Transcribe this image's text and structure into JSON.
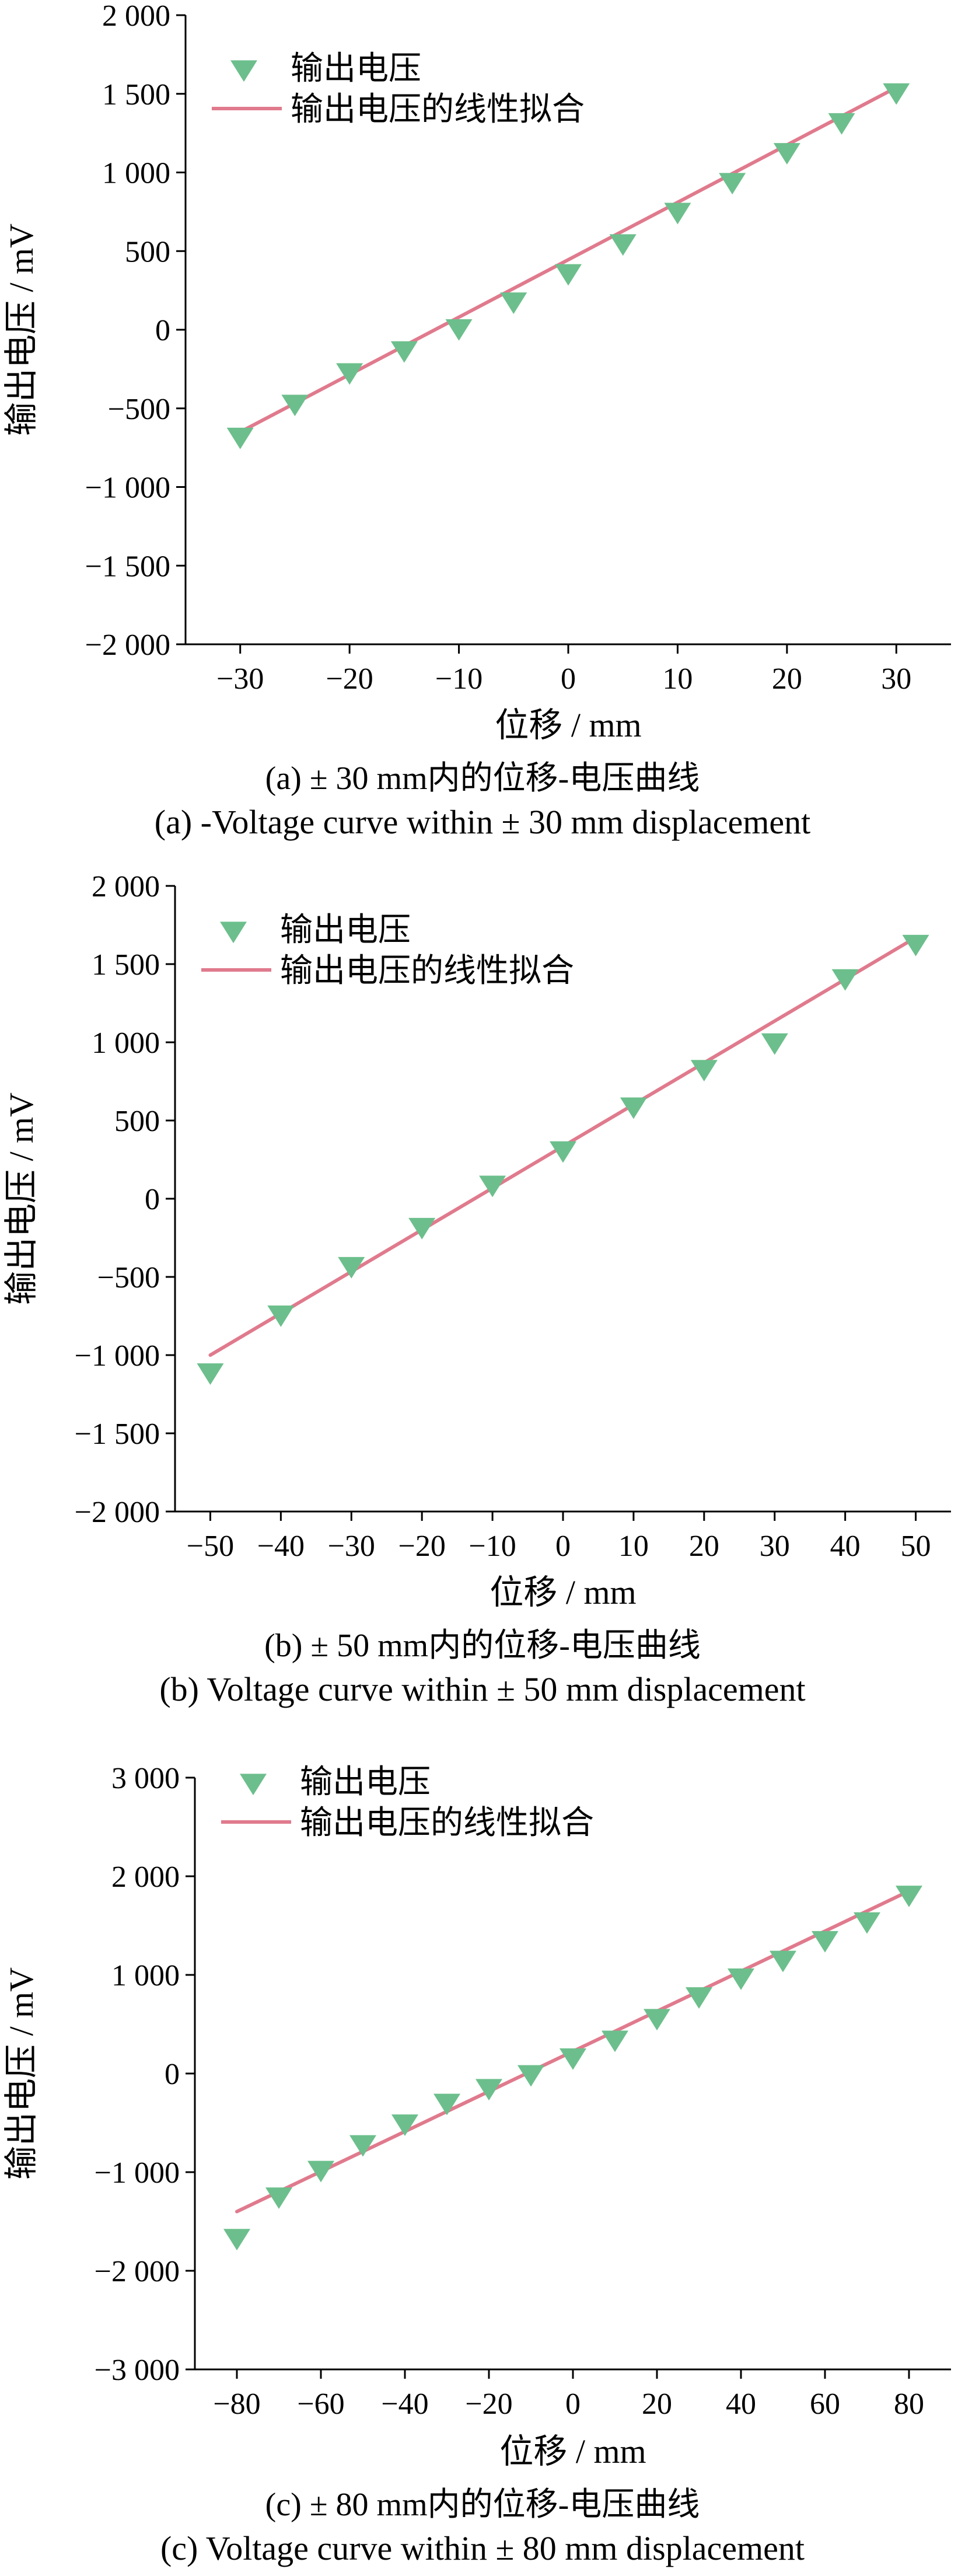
{
  "chart_data": [
    {
      "type": "scatter",
      "title": "",
      "caption_zh": "(a) ± 30 mm内的位移-电压曲线",
      "caption_en": "(a) -Voltage curve within ± 30 mm displacement",
      "xlabel": "位移 / mm",
      "ylabel": "输出电压 / mV",
      "xlim": [
        -35,
        35
      ],
      "ylim": [
        -2000,
        2000
      ],
      "xticks": [
        -30,
        -20,
        -10,
        0,
        10,
        20,
        30
      ],
      "yticks": [
        -2000,
        -1500,
        -1000,
        -500,
        0,
        500,
        1000,
        1500,
        2000
      ],
      "xtick_labels": [
        "−30",
        "−20",
        "−10",
        "0",
        "10",
        "20",
        "30"
      ],
      "ytick_labels": [
        "−2 000",
        "−1 500",
        "−1 000",
        "−500",
        "0",
        "500",
        "1 000",
        "1 500",
        "2 000"
      ],
      "legend_position": "top-left",
      "series": [
        {
          "name": "输出电压",
          "kind": "markers",
          "color": "#6cbf8c",
          "x": [
            -30,
            -25,
            -20,
            -15,
            -10,
            -5,
            0,
            5,
            10,
            15,
            20,
            25,
            30
          ],
          "y": [
            -670,
            -460,
            -260,
            -120,
            20,
            190,
            370,
            560,
            760,
            950,
            1140,
            1330,
            1520
          ]
        },
        {
          "name": "输出电压的线性拟合",
          "kind": "line",
          "color": "#e07a8d",
          "x": [
            -30,
            30
          ],
          "y": [
            -650,
            1540
          ]
        }
      ]
    },
    {
      "type": "scatter",
      "title": "",
      "caption_zh": "(b) ± 50 mm内的位移-电压曲线",
      "caption_en": "(b) Voltage curve within ± 50 mm displacement",
      "xlabel": "位移 / mm",
      "ylabel": "输出电压 / mV",
      "xlim": [
        -55,
        55
      ],
      "ylim": [
        -2000,
        2000
      ],
      "xticks": [
        -50,
        -40,
        -30,
        -20,
        -10,
        0,
        10,
        20,
        30,
        40,
        50
      ],
      "yticks": [
        -2000,
        -1500,
        -1000,
        -500,
        0,
        500,
        1000,
        1500,
        2000
      ],
      "xtick_labels": [
        "−50",
        "−40",
        "−30",
        "−20",
        "−10",
        "0",
        "10",
        "20",
        "30",
        "40",
        "50"
      ],
      "ytick_labels": [
        "−2 000",
        "−1 500",
        "−1 000",
        "−500",
        "0",
        "500",
        "1 000",
        "1 500",
        "2 000"
      ],
      "legend_position": "top-left",
      "series": [
        {
          "name": "输出电压",
          "kind": "markers",
          "color": "#6cbf8c",
          "x": [
            -50,
            -40,
            -30,
            -20,
            -10,
            0,
            10,
            20,
            30,
            40,
            50
          ],
          "y": [
            -1100,
            -730,
            -420,
            -170,
            100,
            320,
            600,
            840,
            1010,
            1420,
            1640
          ]
        },
        {
          "name": "输出电压的线性拟合",
          "kind": "line",
          "color": "#e07a8d",
          "x": [
            -50,
            50
          ],
          "y": [
            -1000,
            1670
          ]
        }
      ]
    },
    {
      "type": "scatter",
      "title": "",
      "caption_zh": "(c) ± 80 mm内的位移-电压曲线",
      "caption_en": "(c) Voltage curve within ± 80 mm displacement",
      "xlabel": "位移 / mm",
      "ylabel": "输出电压 / mV",
      "xlim": [
        -90,
        90
      ],
      "ylim": [
        -3000,
        3000
      ],
      "xticks": [
        -80,
        -60,
        -40,
        -20,
        0,
        20,
        40,
        60,
        80
      ],
      "yticks": [
        -3000,
        -2000,
        -1000,
        0,
        1000,
        2000,
        3000
      ],
      "xtick_labels": [
        "−80",
        "−60",
        "−40",
        "−20",
        "0",
        "20",
        "40",
        "60",
        "80"
      ],
      "ytick_labels": [
        "−3 000",
        "−2 000",
        "−1 000",
        "0",
        "1 000",
        "2 000",
        "3 000"
      ],
      "legend_position": "top-left",
      "series": [
        {
          "name": "输出电压",
          "kind": "markers",
          "color": "#6cbf8c",
          "x": [
            -80,
            -70,
            -60,
            -50,
            -40,
            -30,
            -20,
            -10,
            0,
            10,
            20,
            30,
            40,
            50,
            60,
            70,
            80
          ],
          "y": [
            -1650,
            -1230,
            -960,
            -700,
            -490,
            -280,
            -130,
            10,
            180,
            360,
            580,
            800,
            990,
            1170,
            1370,
            1560,
            1830
          ]
        },
        {
          "name": "输出电压的线性拟合",
          "kind": "line",
          "color": "#e07a8d",
          "x": [
            -80,
            80
          ],
          "y": [
            -1400,
            1850
          ]
        }
      ]
    }
  ]
}
